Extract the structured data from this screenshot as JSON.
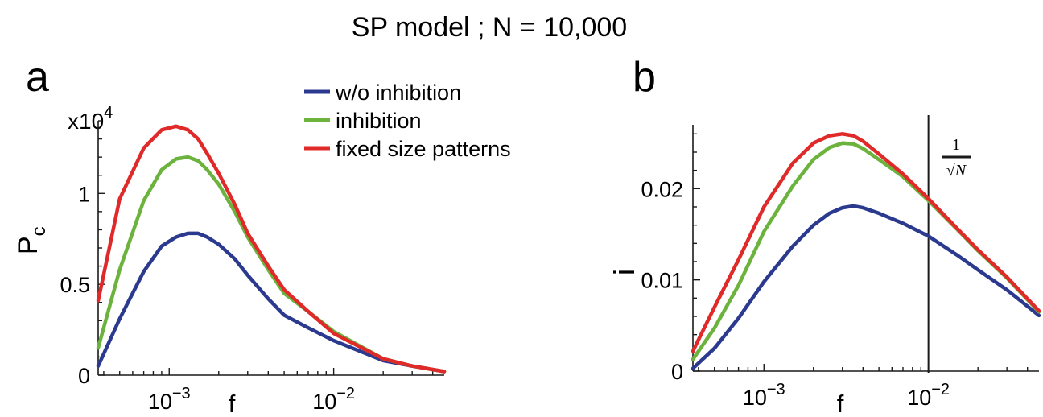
{
  "figure": {
    "title": "SP model ; N = 10,000",
    "colors": {
      "w/o inhibition": "#2b3a8f",
      "inhibition": "#6cb33e",
      "fixed size patterns": "#e02a2a"
    }
  },
  "chart_data": [
    {
      "type": "line",
      "panel_label": "a",
      "xlabel": "f",
      "ylabel": "P",
      "ylabel_subscript": "c",
      "y_multiplier": "x10",
      "y_multiplier_exp": "4",
      "xscale": "log",
      "xlim": [
        0.00037,
        0.047
      ],
      "ylim": [
        0,
        1.4
      ],
      "x_ticks": [
        {
          "value": 0.001,
          "base": "10",
          "exp": "−3"
        },
        {
          "value": 0.01,
          "base": "10",
          "exp": "−2"
        }
      ],
      "y_ticks": [
        {
          "value": 0,
          "label": "0"
        },
        {
          "value": 0.5,
          "label": "0.5"
        },
        {
          "value": 1,
          "label": "1"
        }
      ],
      "legend": {
        "placement": "top-right",
        "entries": [
          "w/o inhibition",
          "inhibition",
          "fixed size patterns"
        ]
      },
      "series": [
        {
          "name": "w/o inhibition",
          "x": [
            0.00037,
            0.0005,
            0.0007,
            0.0009,
            0.0011,
            0.0013,
            0.0015,
            0.0017,
            0.002,
            0.0025,
            0.003,
            0.004,
            0.005,
            0.007,
            0.01,
            0.02,
            0.03,
            0.047
          ],
          "y": [
            0.05,
            0.31,
            0.57,
            0.71,
            0.76,
            0.78,
            0.78,
            0.76,
            0.72,
            0.64,
            0.55,
            0.42,
            0.33,
            0.26,
            0.19,
            0.08,
            0.05,
            0.02
          ]
        },
        {
          "name": "inhibition",
          "x": [
            0.00037,
            0.0005,
            0.0007,
            0.0009,
            0.0011,
            0.0013,
            0.0015,
            0.0017,
            0.002,
            0.0025,
            0.003,
            0.004,
            0.005,
            0.007,
            0.01,
            0.02,
            0.03,
            0.047
          ],
          "y": [
            0.15,
            0.58,
            0.96,
            1.13,
            1.19,
            1.2,
            1.18,
            1.13,
            1.05,
            0.9,
            0.76,
            0.58,
            0.45,
            0.35,
            0.24,
            0.09,
            0.05,
            0.02
          ]
        },
        {
          "name": "fixed size patterns",
          "x": [
            0.00037,
            0.0005,
            0.0007,
            0.0009,
            0.0011,
            0.0013,
            0.0015,
            0.0017,
            0.002,
            0.0025,
            0.003,
            0.004,
            0.005,
            0.007,
            0.01,
            0.02,
            0.03,
            0.047
          ],
          "y": [
            0.41,
            0.97,
            1.25,
            1.35,
            1.37,
            1.35,
            1.3,
            1.22,
            1.11,
            0.94,
            0.78,
            0.6,
            0.47,
            0.35,
            0.23,
            0.09,
            0.05,
            0.02
          ]
        }
      ]
    },
    {
      "type": "line",
      "panel_label": "b",
      "xlabel": "f",
      "ylabel": "i",
      "xscale": "log",
      "xlim": [
        0.00037,
        0.047
      ],
      "ylim": [
        0,
        0.027
      ],
      "x_ticks": [
        {
          "value": 0.001,
          "base": "10",
          "exp": "−3"
        },
        {
          "value": 0.01,
          "base": "10",
          "exp": "−2"
        }
      ],
      "y_ticks": [
        {
          "value": 0,
          "label": "0"
        },
        {
          "value": 0.01,
          "label": "0.01"
        },
        {
          "value": 0.02,
          "label": "0.02"
        }
      ],
      "vline": {
        "x": 0.01,
        "label_num": "1",
        "label_den": "√N"
      },
      "series": [
        {
          "name": "w/o inhibition",
          "x": [
            0.00037,
            0.0005,
            0.0007,
            0.001,
            0.0015,
            0.002,
            0.0025,
            0.003,
            0.0035,
            0.004,
            0.005,
            0.007,
            0.01,
            0.015,
            0.02,
            0.03,
            0.047
          ],
          "y": [
            0.0003,
            0.0025,
            0.0058,
            0.0098,
            0.0137,
            0.016,
            0.0173,
            0.0179,
            0.0181,
            0.0179,
            0.0173,
            0.0162,
            0.0148,
            0.0127,
            0.0111,
            0.0089,
            0.0061
          ]
        },
        {
          "name": "inhibition",
          "x": [
            0.00037,
            0.0005,
            0.0007,
            0.001,
            0.0015,
            0.002,
            0.0025,
            0.003,
            0.0035,
            0.004,
            0.005,
            0.007,
            0.01,
            0.015,
            0.02,
            0.03,
            0.047
          ],
          "y": [
            0.0013,
            0.0047,
            0.0094,
            0.0153,
            0.0203,
            0.0232,
            0.0245,
            0.025,
            0.0249,
            0.0244,
            0.0232,
            0.0213,
            0.0187,
            0.0155,
            0.0132,
            0.0102,
            0.0065
          ]
        },
        {
          "name": "fixed size patterns",
          "x": [
            0.00037,
            0.0005,
            0.0007,
            0.001,
            0.0015,
            0.002,
            0.0025,
            0.003,
            0.0035,
            0.004,
            0.005,
            0.007,
            0.01,
            0.015,
            0.02,
            0.03,
            0.047
          ],
          "y": [
            0.0022,
            0.007,
            0.0122,
            0.018,
            0.0228,
            0.025,
            0.0258,
            0.026,
            0.0258,
            0.0252,
            0.0238,
            0.0216,
            0.0189,
            0.0156,
            0.0133,
            0.0103,
            0.0066
          ]
        }
      ]
    }
  ]
}
